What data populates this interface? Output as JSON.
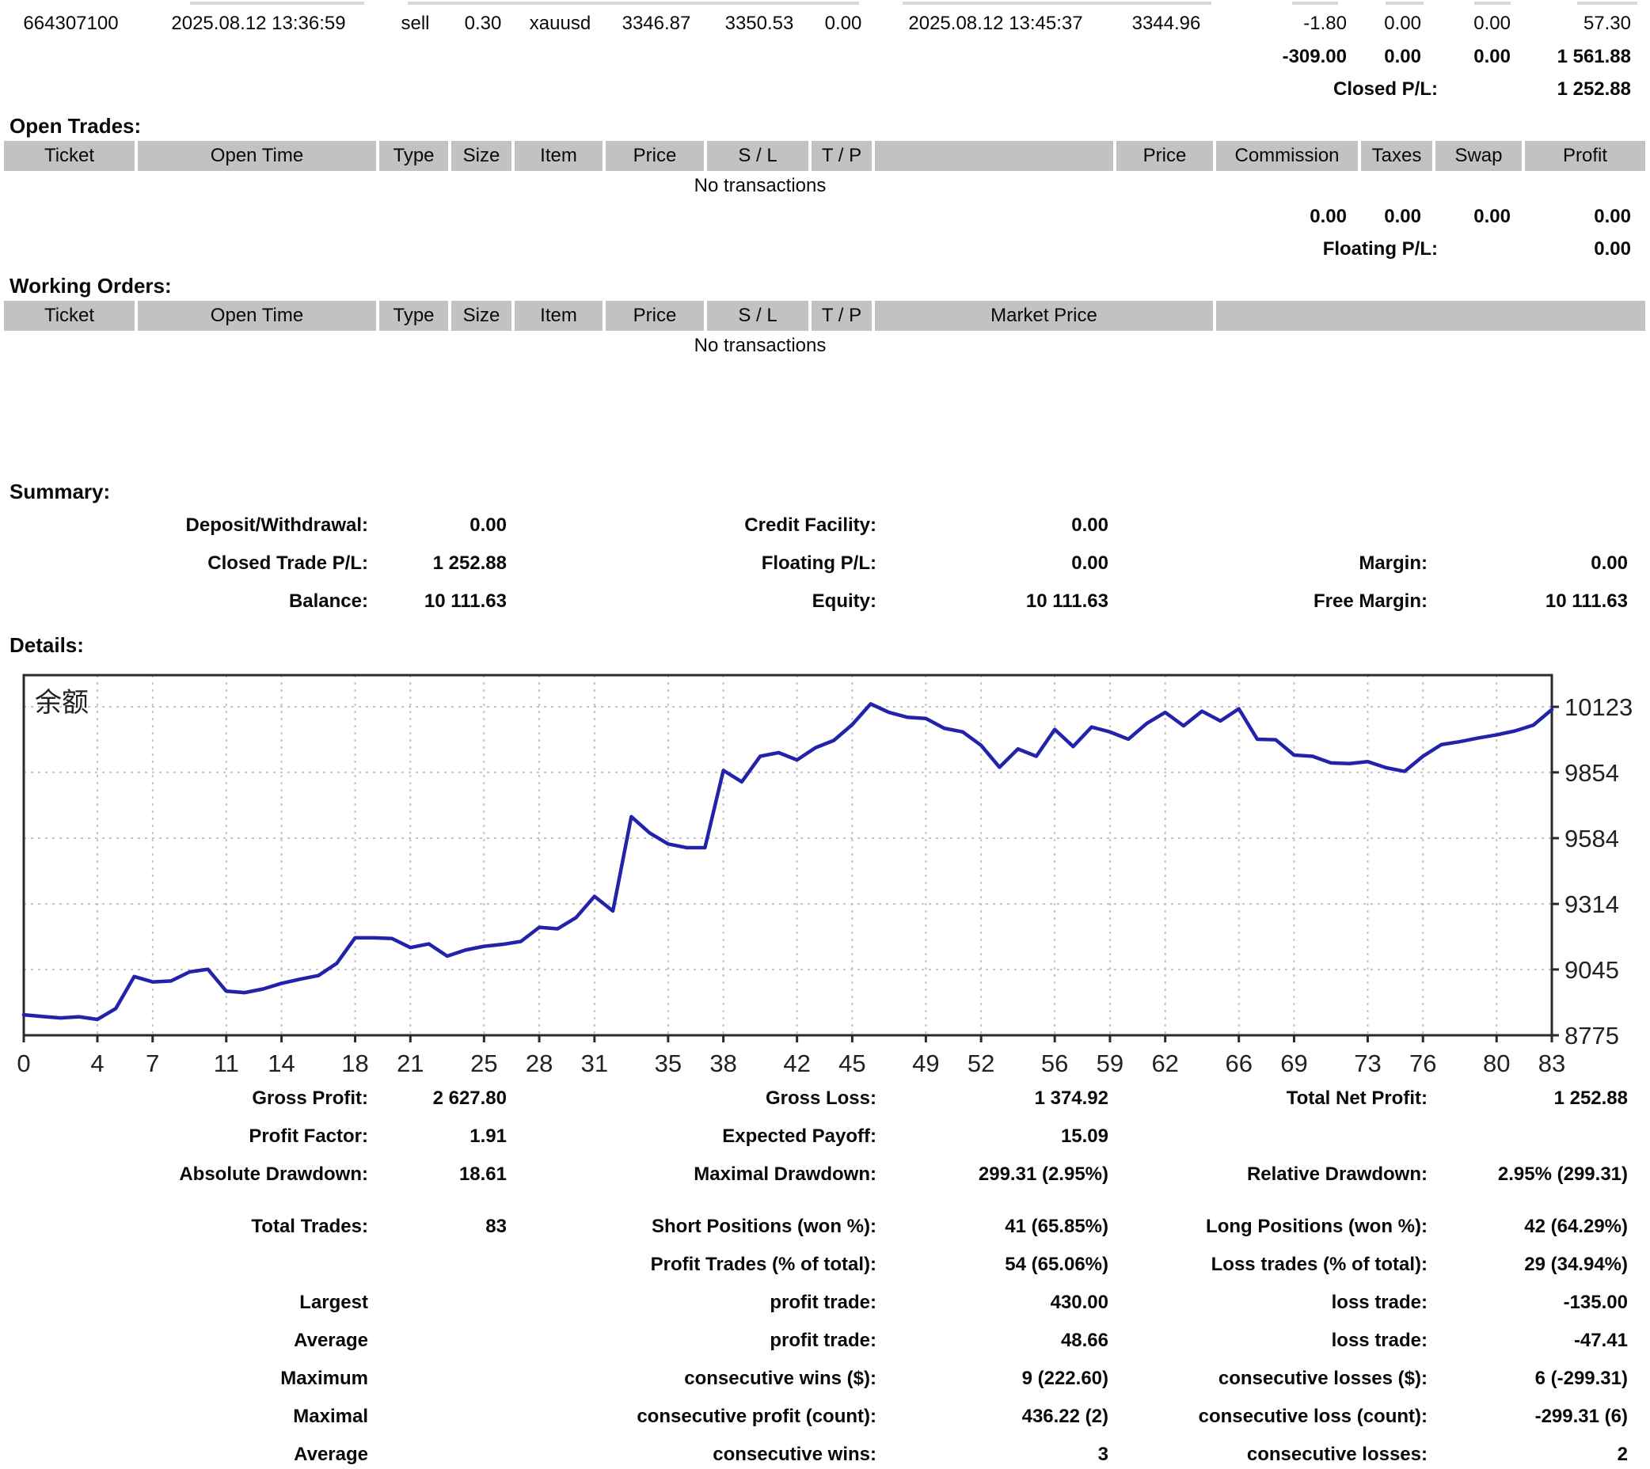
{
  "closed": {
    "trade": {
      "ticket": "664307100",
      "open_time": "2025.08.12 13:36:59",
      "type": "sell",
      "size": "0.30",
      "item": "xauusd",
      "open_price": "3346.87",
      "sl": "3350.53",
      "tp": "0.00",
      "close_time": "2025.08.12 13:45:37",
      "close_price": "3344.96",
      "commission": "-1.80",
      "taxes": "0.00",
      "swap": "0.00",
      "profit": "57.30"
    },
    "totals": {
      "commission": "-309.00",
      "taxes": "0.00",
      "swap": "0.00",
      "profit": "1 561.88"
    },
    "closed_pl_label": "Closed P/L:",
    "closed_pl_value": "1 252.88"
  },
  "open_trades": {
    "title": "Open Trades:",
    "headers": [
      "Ticket",
      "Open Time",
      "Type",
      "Size",
      "Item",
      "Price",
      "S / L",
      "T / P",
      "",
      "Price",
      "Commission",
      "Taxes",
      "Swap",
      "Profit"
    ],
    "no_transactions": "No transactions",
    "totals": {
      "commission": "0.00",
      "taxes": "0.00",
      "swap": "0.00",
      "profit": "0.00"
    },
    "floating_pl_label": "Floating P/L:",
    "floating_pl_value": "0.00"
  },
  "working_orders": {
    "title": "Working Orders:",
    "headers": [
      "Ticket",
      "Open Time",
      "Type",
      "Size",
      "Item",
      "Price",
      "S / L",
      "T / P",
      "Market Price",
      ""
    ],
    "no_transactions": "No transactions"
  },
  "summary": {
    "title": "Summary:",
    "rows": [
      {
        "l1": "Deposit/Withdrawal:",
        "v1": "0.00",
        "l2": "Credit Facility:",
        "v2": "0.00",
        "l3": "",
        "v3": ""
      },
      {
        "l1": "Closed Trade P/L:",
        "v1": "1 252.88",
        "l2": "Floating P/L:",
        "v2": "0.00",
        "l3": "Margin:",
        "v3": "0.00"
      },
      {
        "l1": "Balance:",
        "v1": "10 111.63",
        "l2": "Equity:",
        "v2": "10 111.63",
        "l3": "Free Margin:",
        "v3": "10 111.63"
      }
    ]
  },
  "details": {
    "title": "Details:",
    "rows": [
      {
        "l1": "Gross Profit:",
        "v1": "2 627.80",
        "l2": "Gross Loss:",
        "v2": "1 374.92",
        "l3": "Total Net Profit:",
        "v3": "1 252.88"
      },
      {
        "l1": "Profit Factor:",
        "v1": "1.91",
        "l2": "Expected Payoff:",
        "v2": "15.09",
        "l3": "",
        "v3": ""
      },
      {
        "l1": "Absolute Drawdown:",
        "v1": "18.61",
        "l2": "Maximal Drawdown:",
        "v2": "299.31 (2.95%)",
        "l3": "Relative Drawdown:",
        "v3": "2.95% (299.31)"
      },
      {
        "l1": "Total Trades:",
        "v1": "83",
        "l2": "Short Positions (won %):",
        "v2": "41 (65.85%)",
        "l3": "Long Positions (won %):",
        "v3": "42 (64.29%)"
      },
      {
        "l1": "",
        "v1": "",
        "l2": "Profit Trades (% of total):",
        "v2": "54 (65.06%)",
        "l3": "Loss trades (% of total):",
        "v3": "29 (34.94%)"
      },
      {
        "l1": "Largest",
        "v1": "",
        "l2": "profit trade:",
        "v2": "430.00",
        "l3": "loss trade:",
        "v3": "-135.00"
      },
      {
        "l1": "Average",
        "v1": "",
        "l2": "profit trade:",
        "v2": "48.66",
        "l3": "loss trade:",
        "v3": "-47.41"
      },
      {
        "l1": "Maximum",
        "v1": "",
        "l2": "consecutive wins ($):",
        "v2": "9 (222.60)",
        "l3": "consecutive losses ($):",
        "v3": "6 (-299.31)"
      },
      {
        "l1": "Maximal",
        "v1": "",
        "l2": "consecutive profit (count):",
        "v2": "436.22 (2)",
        "l3": "consecutive loss (count):",
        "v3": "-299.31 (6)"
      },
      {
        "l1": "Average",
        "v1": "",
        "l2": "consecutive wins:",
        "v2": "3",
        "l3": "consecutive losses:",
        "v3": "2"
      }
    ]
  },
  "chart_data": {
    "type": "line",
    "series_label": "余额",
    "xlabel": "",
    "ylabel": "",
    "x_ticks": [
      0,
      4,
      7,
      11,
      14,
      18,
      21,
      25,
      28,
      31,
      35,
      38,
      42,
      45,
      49,
      52,
      56,
      59,
      62,
      66,
      69,
      73,
      76,
      80,
      83
    ],
    "y_ticks": [
      8775,
      9045,
      9314,
      9584,
      9854,
      10123
    ],
    "xlim": [
      0,
      83
    ],
    "ylim": [
      8775,
      10253
    ],
    "grid": true,
    "line_color": "#2222aa",
    "grid_color": "#c4c4c4",
    "axis_color": "#2a2a2a",
    "values": [
      8859,
      8852,
      8846,
      8851,
      8840,
      8885,
      9016,
      8994,
      8998,
      9035,
      9046,
      8956,
      8950,
      8965,
      8988,
      9005,
      9020,
      9070,
      9175,
      9175,
      9172,
      9135,
      9150,
      9100,
      9125,
      9140,
      9148,
      9160,
      9218,
      9212,
      9258,
      9345,
      9285,
      9672,
      9605,
      9560,
      9545,
      9545,
      9862,
      9815,
      9920,
      9935,
      9905,
      9955,
      9985,
      10050,
      10135,
      10100,
      10080,
      10075,
      10035,
      10020,
      9965,
      9875,
      9950,
      9920,
      10030,
      9960,
      10040,
      10020,
      9990,
      10055,
      10100,
      10045,
      10105,
      10065,
      10115,
      9990,
      9988,
      9925,
      9920,
      9893,
      9890,
      9898,
      9873,
      9858,
      9920,
      9968,
      9980,
      9995,
      10008,
      10024,
      10048,
      10111.63
    ]
  }
}
